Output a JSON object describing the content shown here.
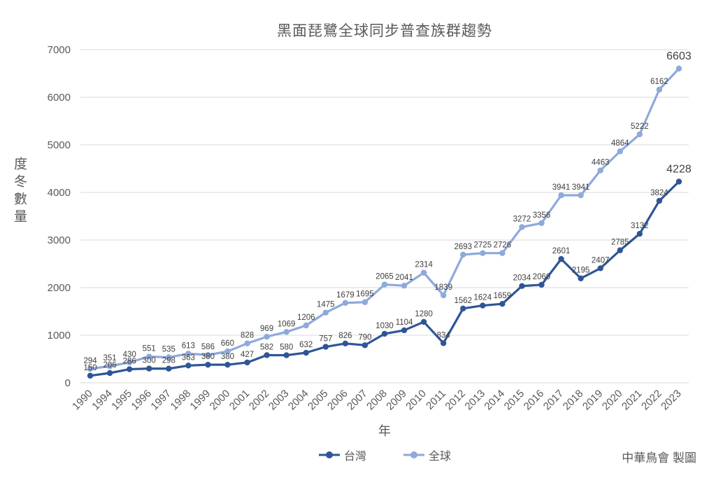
{
  "chart_data": {
    "type": "line",
    "title": "黑面琵鷺全球同步普查族群趨勢",
    "xlabel": "年",
    "ylabel": "度冬數量",
    "ylim": [
      0,
      7000
    ],
    "yticks": [
      0,
      1000,
      2000,
      3000,
      4000,
      5000,
      6000,
      7000
    ],
    "grid": true,
    "data_labels": true,
    "legend_position": "bottom",
    "categories": [
      "1990",
      "1994",
      "1995",
      "1996",
      "1997",
      "1998",
      "1999",
      "2000",
      "2001",
      "2002",
      "2003",
      "2004",
      "2005",
      "2006",
      "2007",
      "2008",
      "2009",
      "2010",
      "2011",
      "2012",
      "2013",
      "2014",
      "2015",
      "2016",
      "2017",
      "2018",
      "2019",
      "2020",
      "2021",
      "2022",
      "2023"
    ],
    "series": [
      {
        "name": "台灣",
        "color": "#2E5596",
        "values": [
          150,
          206,
          286,
          300,
          298,
          363,
          380,
          380,
          427,
          582,
          580,
          632,
          757,
          826,
          790,
          1030,
          1104,
          1280,
          834,
          1562,
          1624,
          1659,
          2034,
          2060,
          2601,
          2195,
          2407,
          2785,
          3132,
          3824,
          4228
        ]
      },
      {
        "name": "全球",
        "color": "#8EA9DB",
        "values": [
          294,
          351,
          430,
          551,
          535,
          613,
          586,
          660,
          828,
          969,
          1069,
          1206,
          1475,
          1679,
          1695,
          2065,
          2041,
          2314,
          1839,
          2693,
          2725,
          2726,
          3272,
          3356,
          3941,
          3941,
          4463,
          4864,
          5222,
          6162,
          6603
        ]
      }
    ],
    "colors": {
      "gridline": "#D9D9D9",
      "tick_text": "#595959",
      "data_label_text": "#404040"
    }
  },
  "footer": {
    "credit": "中華鳥會 製圖"
  }
}
